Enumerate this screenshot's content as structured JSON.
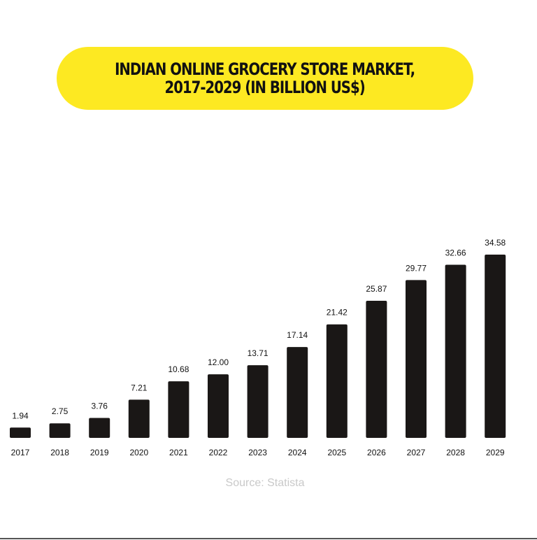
{
  "title": "INDIAN ONLINE GROCERY STORE MARKET,\n2017-2029 (IN BILLION US$)",
  "source": "Source: Statista",
  "colors": {
    "bar": "#1a1716",
    "title_bg": "#fde922",
    "source_text": "#c9c9c9"
  },
  "chart_data": {
    "type": "bar",
    "title": "INDIAN ONLINE GROCERY STORE MARKET, 2017-2029 (IN BILLION US$)",
    "xlabel": "",
    "ylabel": "",
    "grid": false,
    "categories": [
      "2017",
      "2018",
      "2019",
      "2020",
      "2021",
      "2022",
      "2023",
      "2024",
      "2025",
      "2026",
      "2027",
      "2028",
      "2029"
    ],
    "values": [
      1.94,
      2.75,
      3.76,
      7.21,
      10.68,
      12.0,
      13.71,
      17.14,
      21.42,
      25.87,
      29.77,
      32.66,
      34.58
    ],
    "value_labels": [
      "1.94",
      "2.75",
      "3.76",
      "7.21",
      "10.68",
      "12.00",
      "13.71",
      "17.14",
      "21.42",
      "25.87",
      "29.77",
      "32.66",
      "34.58"
    ],
    "ylim": [
      0,
      34.58
    ]
  }
}
